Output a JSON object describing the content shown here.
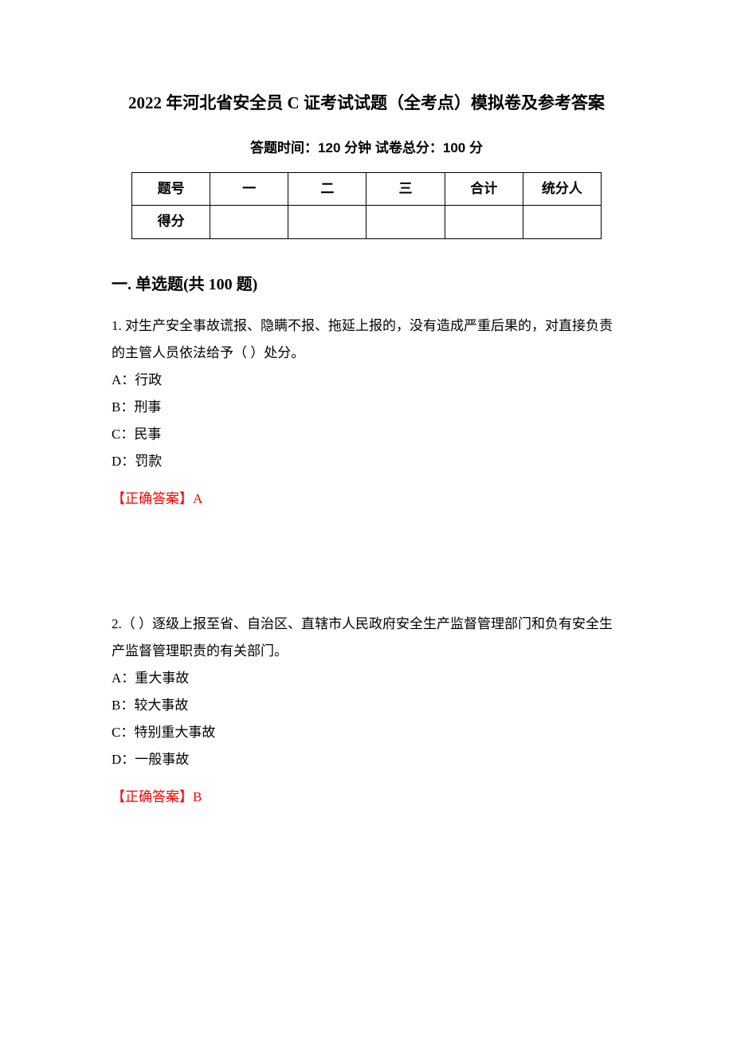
{
  "document": {
    "title": "2022 年河北省安全员 C 证考试试题（全考点）模拟卷及参考答案",
    "subtitle_time_label": "答题时间：",
    "subtitle_time_value": "120 分钟",
    "subtitle_gap": "   ",
    "subtitle_score_label": "试卷总分：",
    "subtitle_score_value": "100 分"
  },
  "score_table": {
    "headers": [
      "题号",
      "一",
      "二",
      "三",
      "合计",
      "统分人"
    ],
    "row2_label": "得分",
    "row2_cells": [
      "",
      "",
      "",
      "",
      ""
    ]
  },
  "section1": {
    "heading": "一. 单选题(共 100 题)"
  },
  "q1": {
    "text": "1. 对生产安全事故谎报、隐瞒不报、拖延上报的，没有造成严重后果的，对直接负责的主管人员依法给予（ ）处分。",
    "optA": "A：行政",
    "optB": "B：刑事",
    "optC": "C：民事",
    "optD": "D：罚款",
    "answer": "【正确答案】A"
  },
  "q2": {
    "text": "2.（ ）逐级上报至省、自治区、直辖市人民政府安全生产监督管理部门和负有安全生产监督管理职责的有关部门。",
    "optA": "A：重大事故",
    "optB": "B：较大事故",
    "optC": "C：特别重大事故",
    "optD": "D：一般事故",
    "answer": "【正确答案】B"
  },
  "styles": {
    "answer_color": "#ff0000",
    "text_color": "#000000",
    "background_color": "#ffffff",
    "title_fontsize": 21,
    "body_fontsize": 17,
    "heading_fontsize": 20
  }
}
